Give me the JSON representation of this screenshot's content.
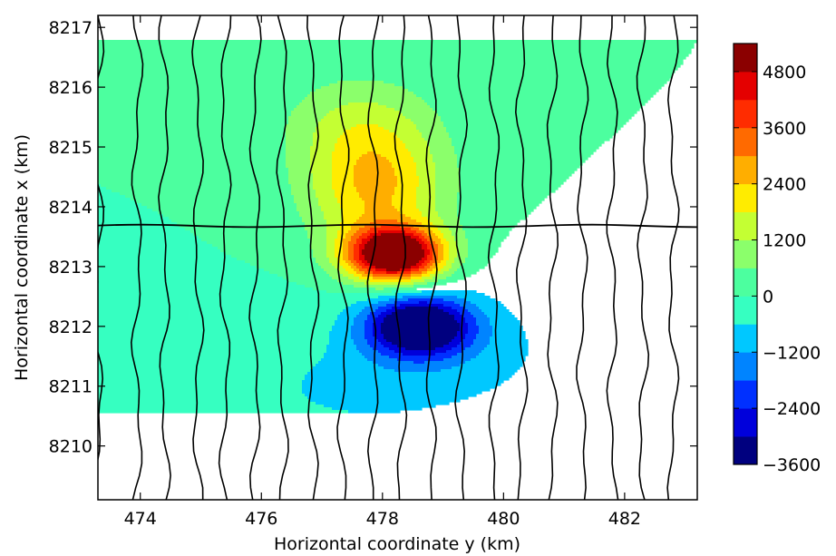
{
  "chart_data": {
    "type": "heatmap",
    "subtype": "filled-contour-map",
    "title": "",
    "xlabel": "Horizontal coordinate y (km)",
    "ylabel": "Horizontal coordinate x (km)",
    "xlim": [
      473.3,
      483.2
    ],
    "ylim": [
      8209.1,
      8217.2
    ],
    "x_ticks": [
      474,
      476,
      478,
      480,
      482
    ],
    "y_ticks": [
      8210,
      8211,
      8212,
      8213,
      8214,
      8215,
      8216,
      8217
    ],
    "colorbar": {
      "levels": [
        -3600,
        -3000,
        -2400,
        -1800,
        -1200,
        -600,
        0,
        600,
        1200,
        1800,
        2400,
        3000,
        3600,
        4200,
        4800,
        5400
      ],
      "colors": [
        "#00007f",
        "#0000db",
        "#0030ff",
        "#0084ff",
        "#00c8ff",
        "#36ffc1",
        "#4cff9f",
        "#8bff6b",
        "#c4ff33",
        "#ffec00",
        "#ffae00",
        "#ff6a00",
        "#ff2c00",
        "#e40000",
        "#8b0000"
      ],
      "tick_labels": [
        "4800",
        "3600",
        "2400",
        "1200",
        "0",
        "−1200",
        "−2400",
        "−3600"
      ],
      "tick_values": [
        4800,
        3600,
        2400,
        1200,
        0,
        -1200,
        -2400,
        -3600
      ]
    },
    "sources": [
      {
        "name": "",
        "y": 478.2,
        "x": 8213.2,
        "amp": 6600,
        "sy": 0.55,
        "sx": 0.32
      },
      {
        "name": "",
        "y": 477.9,
        "x": 8214.3,
        "amp": 2400,
        "sy": 0.8,
        "sx": 0.7
      },
      {
        "name": "",
        "y": 477.6,
        "x": 8215.4,
        "amp": 1100,
        "sy": 0.9,
        "sx": 0.6
      },
      {
        "name": "",
        "y": 478.6,
        "x": 8212.0,
        "amp": -4300,
        "sy": 0.6,
        "sx": 0.35
      },
      {
        "name": "",
        "y": 479.3,
        "x": 8211.6,
        "amp": -700,
        "sy": 1.6,
        "sx": 0.85
      },
      {
        "name": "",
        "y": 477.2,
        "x": 8210.9,
        "amp": -500,
        "sy": 1.4,
        "sx": 0.6
      }
    ],
    "profiles": {
      "north_south_y": [
        473.3,
        473.95,
        474.4,
        474.95,
        475.4,
        475.9,
        476.35,
        476.85,
        477.35,
        477.85,
        478.3,
        478.8,
        479.3,
        479.85,
        480.3,
        480.8,
        481.3,
        481.8,
        482.3,
        482.8
      ],
      "east_west_x": [
        8213.68
      ]
    }
  }
}
